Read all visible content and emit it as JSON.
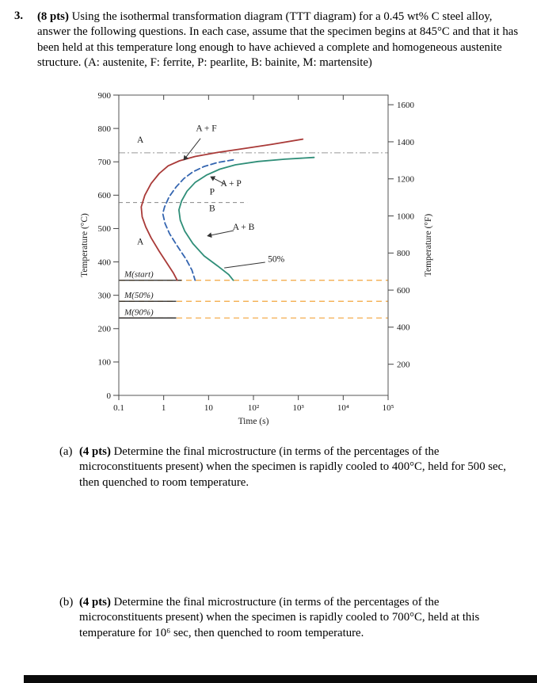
{
  "problem": {
    "number": "3.",
    "points": "(8 pts)",
    "text": "Using the isothermal transformation diagram (TTT diagram) for a 0.45 wt% C steel alloy, answer the following questions. In each case, assume that the specimen begins at 845°C and that it has been held at this temperature long enough to have achieved a complete and homogeneous austenite structure.  (A: austenite, F: ferrite, P: pearlite, B: bainite, M: martensite)"
  },
  "parts": [
    {
      "label": "(a)",
      "points": "(4 pts)",
      "text": "Determine the final microstructure (in terms of the percentages of the microconstituents present) when the specimen is rapidly cooled to 400°C, held for 500 sec, then quenched to room temperature."
    },
    {
      "label": "(b)",
      "points": "(4 pts)",
      "text": "Determine the final microstructure (in terms of the percentages of the microconstituents present) when the specimen is rapidly cooled to 700°C, held at this temperature for 10⁶ sec, then quenched to room temperature."
    }
  ],
  "chart_data": {
    "type": "line",
    "description": "Isothermal transformation (TTT) diagram for a 0.45 wt% C steel alloy",
    "xlabel": "Time (s)",
    "ylabel_left": "Temperature (°C)",
    "ylabel_right": "Temperature (°F)",
    "x_tick_labels": [
      "0.1",
      "1",
      "10",
      "10²",
      "10³",
      "10⁴",
      "10⁵"
    ],
    "x_tick_log": [
      -1,
      0,
      1,
      2,
      3,
      4,
      5
    ],
    "y_left_ticks": [
      0,
      100,
      200,
      300,
      400,
      500,
      600,
      700,
      800,
      900
    ],
    "y_right_ticks_f": [
      200,
      400,
      600,
      800,
      1000,
      1200,
      1400,
      1600
    ],
    "ylim_c": [
      0,
      900
    ],
    "eutectoid_temp_c": 727,
    "pearlite_bainite_boundary_c": 578,
    "pb_boundary_end_log": 1.86,
    "colors": {
      "start_curve": "#a93a38",
      "mid_curve": "#3465b0",
      "fifty_curve": "#2f8e78",
      "m_line_highlight": "#f2a53c",
      "guide": "#999999"
    },
    "martensite_lines": [
      {
        "label": "M(start)",
        "temp_c": 345,
        "solid_end_log": 0.4
      },
      {
        "label": "M(50%)",
        "temp_c": 282,
        "solid_end_log": 0.28
      },
      {
        "label": "M(90%)",
        "temp_c": 232,
        "solid_end_log": 0.28
      }
    ],
    "series": [
      {
        "name": "transformation start (A / A+F boundary)",
        "color": "start_curve",
        "dash": "solid",
        "points": [
          [
            3.1,
            768
          ],
          [
            2.4,
            752
          ],
          [
            1.8,
            740
          ],
          [
            1.2,
            728
          ],
          [
            0.7,
            716
          ],
          [
            0.35,
            703
          ],
          [
            0.1,
            688
          ],
          [
            -0.1,
            665
          ],
          [
            -0.28,
            635
          ],
          [
            -0.42,
            600
          ],
          [
            -0.5,
            565
          ],
          [
            -0.48,
            535
          ],
          [
            -0.4,
            505
          ],
          [
            -0.28,
            472
          ],
          [
            -0.1,
            432
          ],
          [
            0.08,
            395
          ],
          [
            0.22,
            366
          ],
          [
            0.3,
            345
          ]
        ]
      },
      {
        "name": "transformation start (pearlite/bainite, dashed)",
        "color": "mid_curve",
        "dash": "dashed",
        "points": [
          [
            1.55,
            706
          ],
          [
            1.2,
            698
          ],
          [
            0.9,
            686
          ],
          [
            0.65,
            670
          ],
          [
            0.45,
            650
          ],
          [
            0.28,
            625
          ],
          [
            0.12,
            595
          ],
          [
            0.02,
            565
          ],
          [
            -0.02,
            545
          ],
          [
            0.03,
            515
          ],
          [
            0.13,
            485
          ],
          [
            0.3,
            448
          ],
          [
            0.5,
            408
          ],
          [
            0.63,
            375
          ],
          [
            0.7,
            345
          ]
        ]
      },
      {
        "name": "50% completion",
        "color": "fifty_curve",
        "dash": "solid",
        "points": [
          [
            3.35,
            713
          ],
          [
            2.7,
            708
          ],
          [
            2.1,
            701
          ],
          [
            1.6,
            691
          ],
          [
            1.25,
            678
          ],
          [
            0.95,
            660
          ],
          [
            0.7,
            638
          ],
          [
            0.52,
            612
          ],
          [
            0.4,
            583
          ],
          [
            0.34,
            556
          ],
          [
            0.37,
            525
          ],
          [
            0.47,
            492
          ],
          [
            0.65,
            455
          ],
          [
            0.9,
            418
          ],
          [
            1.2,
            388
          ],
          [
            1.45,
            362
          ],
          [
            1.55,
            345
          ]
        ]
      }
    ],
    "region_labels": [
      {
        "text": "A",
        "lt": -0.52,
        "T": 757
      },
      {
        "text": "A + F",
        "lt": 0.95,
        "T": 792
      },
      {
        "text": "A + P",
        "lt": 1.5,
        "T": 627
      },
      {
        "text": "P",
        "lt": 1.08,
        "T": 602
      },
      {
        "text": "B",
        "lt": 1.08,
        "T": 552
      },
      {
        "text": "A + B",
        "lt": 1.78,
        "T": 496
      },
      {
        "text": "A",
        "lt": -0.52,
        "T": 452
      },
      {
        "text": "50%",
        "lt": 2.32,
        "T": 400,
        "anchor": "start"
      }
    ],
    "leaders": [
      {
        "from": [
          0.82,
          770
        ],
        "to": [
          0.45,
          706
        ],
        "arrow": true
      },
      {
        "from": [
          1.36,
          633
        ],
        "to": [
          1.05,
          655
        ],
        "arrow": true
      },
      {
        "from": [
          1.56,
          494
        ],
        "to": [
          0.98,
          478
        ],
        "arrow": true
      },
      {
        "from": [
          2.26,
          399
        ],
        "to": [
          1.35,
          382
        ],
        "arrow": false
      }
    ]
  }
}
